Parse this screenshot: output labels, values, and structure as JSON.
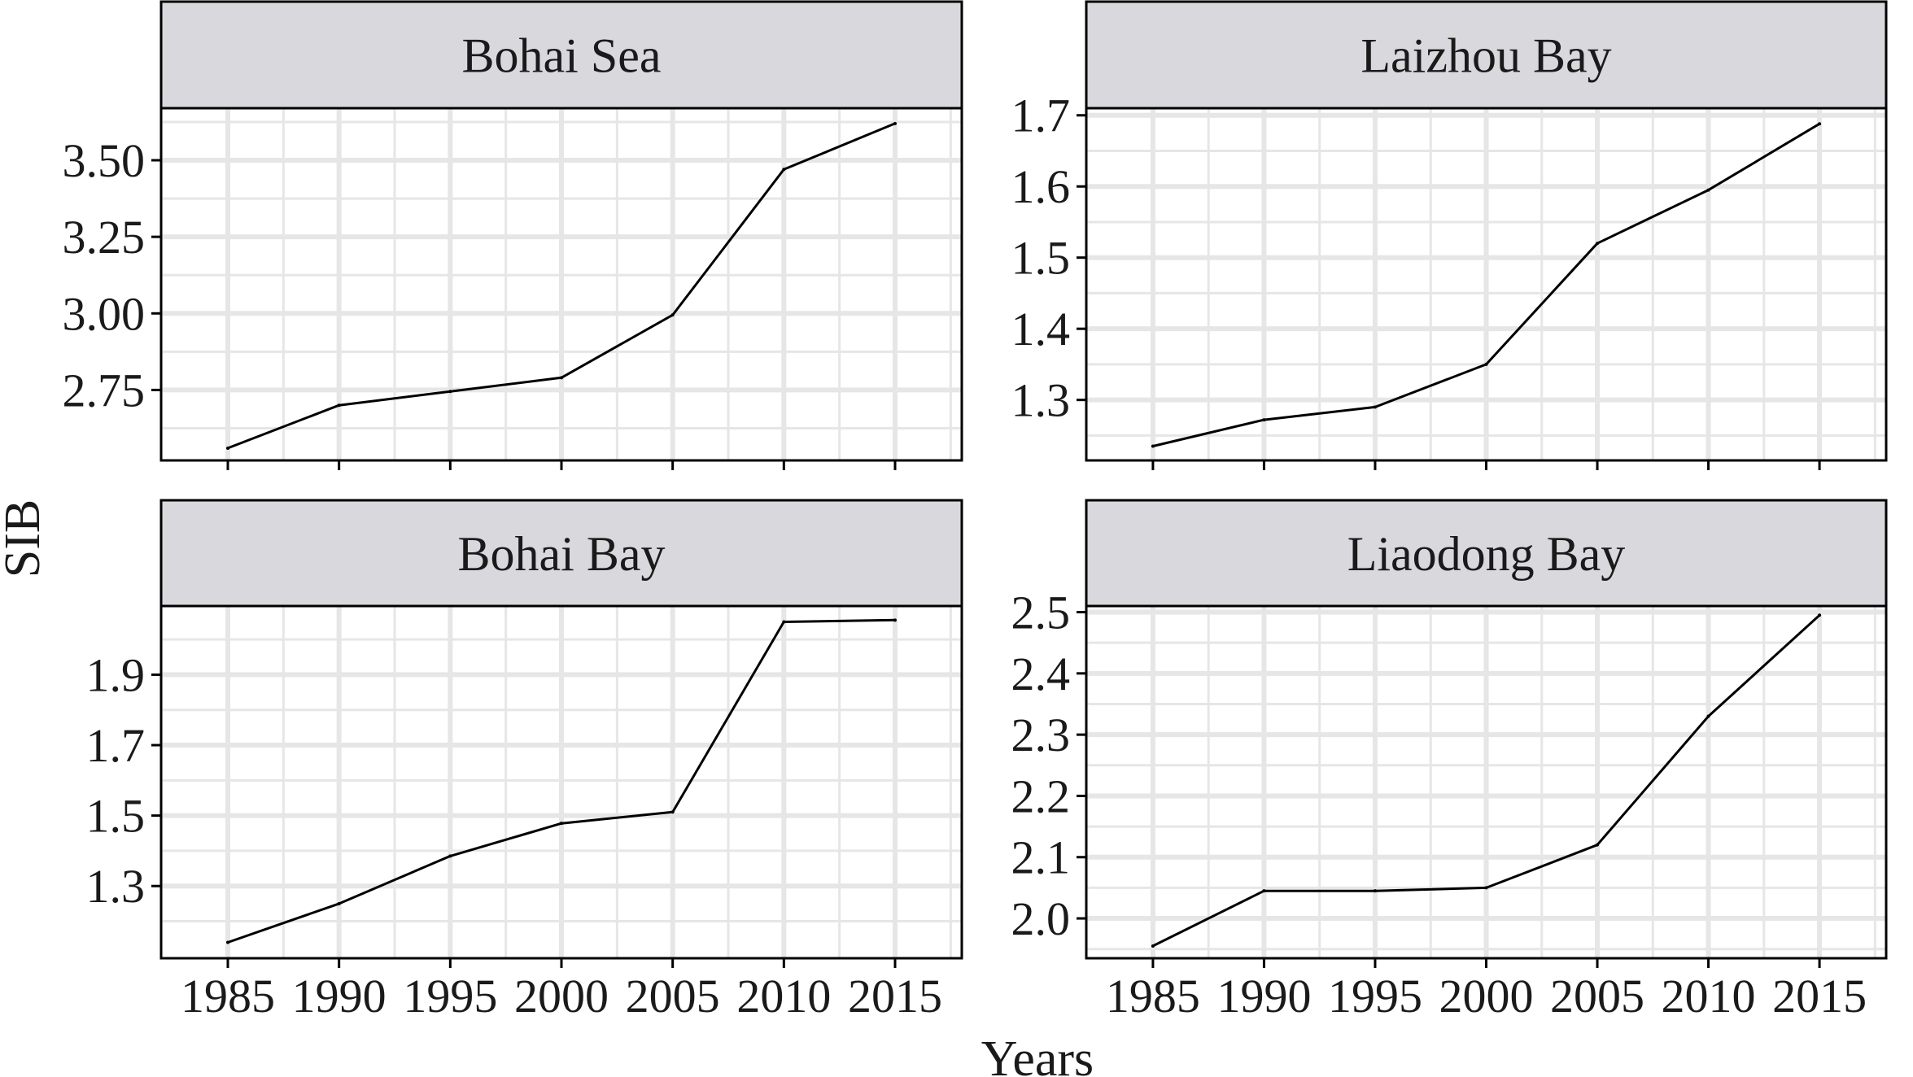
{
  "chart_data": {
    "type": "line",
    "layout": "facet-grid 2x2",
    "xlabel": "Years",
    "ylabel": "SIB",
    "grid": true,
    "x": [
      1985,
      1990,
      1995,
      2000,
      2005,
      2010,
      2015
    ],
    "panels": [
      {
        "title": "Bohai Sea",
        "values": [
          2.56,
          2.7,
          2.745,
          2.79,
          2.995,
          3.47,
          3.62
        ],
        "ylim": [
          2.52,
          3.67
        ],
        "yticks": [
          "2.75",
          "3.00",
          "3.25",
          "3.50"
        ],
        "show_xticks": false
      },
      {
        "title": "Laizhou Bay",
        "values": [
          1.235,
          1.272,
          1.29,
          1.35,
          1.52,
          1.595,
          1.688
        ],
        "ylim": [
          1.215,
          1.71
        ],
        "yticks": [
          "1.3",
          "1.4",
          "1.5",
          "1.6",
          "1.7"
        ],
        "show_xticks": false
      },
      {
        "title": "Bohai Bay",
        "values": [
          1.14,
          1.25,
          1.385,
          1.478,
          1.51,
          2.05,
          2.055
        ],
        "ylim": [
          1.095,
          2.095
        ],
        "yticks": [
          "1.3",
          "1.5",
          "1.7",
          "1.9"
        ],
        "show_xticks": true
      },
      {
        "title": "Liaodong Bay",
        "values": [
          1.955,
          2.045,
          2.045,
          2.05,
          2.12,
          2.33,
          2.495
        ],
        "ylim": [
          1.935,
          2.51
        ],
        "yticks": [
          "2.0",
          "2.1",
          "2.2",
          "2.3",
          "2.4",
          "2.5"
        ],
        "show_xticks": true
      }
    ],
    "xticks": [
      "1985",
      "1990",
      "1995",
      "2000",
      "2005",
      "2010",
      "2015"
    ],
    "colors": {
      "line": "#000000",
      "grid": "#e6e6e6",
      "strip_background": "#d9d8dc",
      "frame": "#000000"
    }
  }
}
